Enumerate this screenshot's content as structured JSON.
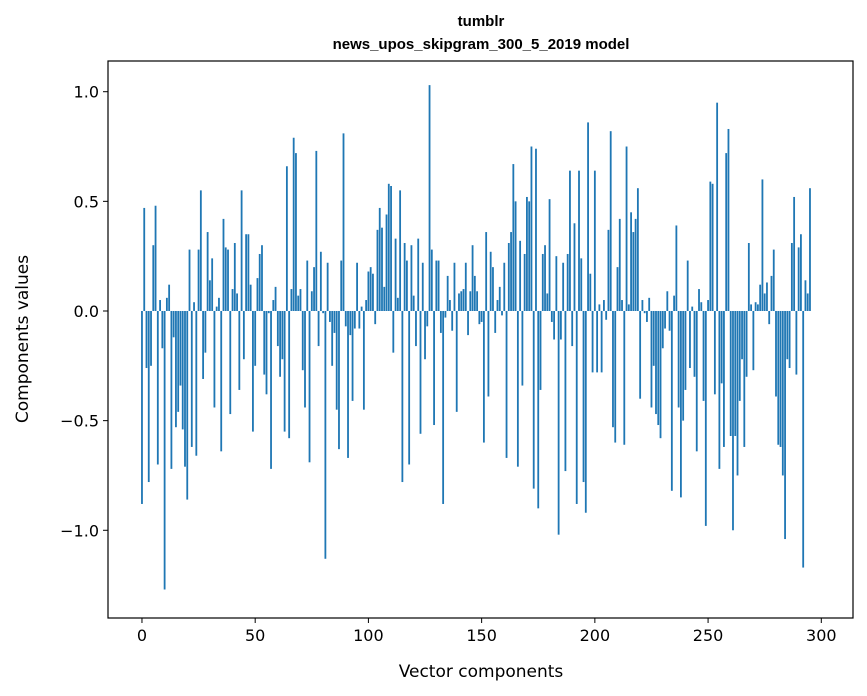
{
  "chart_data": {
    "type": "bar",
    "title": "tumblr",
    "subtitle": "news_upos_skipgram_300_5_2019 model",
    "xlabel": "Vector components",
    "ylabel": "Components values",
    "xlim": [
      -15,
      314
    ],
    "ylim": [
      -1.4,
      1.14
    ],
    "xticks": [
      0,
      50,
      100,
      150,
      200,
      250,
      300
    ],
    "xtick_labels": [
      "0",
      "50",
      "100",
      "150",
      "200",
      "250",
      "300"
    ],
    "yticks": [
      -1.0,
      -0.5,
      0.0,
      0.5,
      1.0
    ],
    "ytick_labels": [
      "−1.0",
      "−0.5",
      "0.0",
      "0.5",
      "1.0"
    ],
    "grid": false,
    "bar_color": "#1f77b4",
    "values": [
      -0.88,
      0.47,
      -0.26,
      -0.78,
      -0.25,
      0.3,
      0.48,
      -0.7,
      0.05,
      -0.17,
      -1.27,
      0.06,
      0.12,
      -0.72,
      -0.12,
      -0.53,
      -0.46,
      -0.34,
      -0.54,
      -0.71,
      -0.86,
      0.28,
      -0.62,
      0.04,
      -0.66,
      0.28,
      0.55,
      -0.31,
      -0.19,
      0.36,
      0.14,
      0.24,
      -0.44,
      0.02,
      0.06,
      -0.64,
      0.42,
      0.29,
      0.28,
      -0.47,
      0.1,
      0.31,
      0.08,
      -0.36,
      0.55,
      -0.22,
      0.35,
      0.35,
      0.12,
      -0.55,
      -0.25,
      0.15,
      0.26,
      0.3,
      -0.29,
      -0.38,
      -0.01,
      -0.72,
      0.05,
      0.11,
      -0.16,
      -0.3,
      -0.22,
      -0.55,
      0.66,
      -0.58,
      0.1,
      0.79,
      0.72,
      0.07,
      0.1,
      -0.27,
      -0.44,
      0.23,
      -0.69,
      0.09,
      0.2,
      0.73,
      -0.16,
      0.27,
      -0.01,
      -1.13,
      0.22,
      -0.05,
      -0.25,
      -0.1,
      -0.45,
      -0.63,
      0.23,
      0.81,
      -0.07,
      -0.67,
      -0.11,
      -0.41,
      -0.08,
      0.22,
      -0.08,
      0.02,
      -0.45,
      0.05,
      0.18,
      0.2,
      0.17,
      -0.06,
      0.37,
      0.47,
      0.38,
      0.11,
      0.44,
      0.58,
      0.57,
      -0.19,
      0.33,
      0.06,
      0.55,
      -0.78,
      0.31,
      0.23,
      -0.7,
      0.3,
      0.07,
      -0.16,
      0.33,
      -0.56,
      0.22,
      -0.22,
      -0.07,
      1.03,
      0.28,
      -0.52,
      0.23,
      0.23,
      -0.1,
      -0.88,
      -0.03,
      0.16,
      0.05,
      -0.09,
      0.22,
      -0.46,
      0.08,
      0.09,
      0.1,
      0.22,
      -0.11,
      0.09,
      0.3,
      0.16,
      0.09,
      -0.06,
      -0.05,
      -0.6,
      0.36,
      -0.39,
      0.27,
      0.2,
      -0.1,
      0.05,
      0.11,
      -0.02,
      0.22,
      -0.67,
      0.31,
      0.36,
      0.67,
      0.5,
      -0.71,
      0.32,
      -0.34,
      0.26,
      0.52,
      0.5,
      0.75,
      -0.81,
      0.74,
      -0.9,
      -0.36,
      0.26,
      0.3,
      0.08,
      0.51,
      -0.05,
      -0.13,
      0.25,
      -1.02,
      -0.13,
      0.22,
      -0.73,
      0.26,
      0.64,
      -0.16,
      0.4,
      -0.88,
      0.64,
      0.24,
      -0.78,
      -0.92,
      0.86,
      0.17,
      -0.28,
      0.64,
      -0.28,
      0.03,
      -0.28,
      0.05,
      -0.04,
      0.37,
      0.82,
      -0.53,
      -0.6,
      0.2,
      0.42,
      0.05,
      -0.61,
      0.75,
      0.03,
      0.45,
      0.36,
      0.42,
      0.56,
      -0.4,
      0.05,
      -0.01,
      -0.05,
      0.06,
      -0.44,
      -0.25,
      -0.47,
      -0.52,
      -0.58,
      -0.17,
      -0.08,
      0.09,
      -0.09,
      -0.82,
      0.07,
      0.39,
      -0.44,
      -0.85,
      -0.5,
      -0.36,
      0.23,
      -0.26,
      0.02,
      -0.3,
      -0.64,
      0.1,
      0.04,
      -0.41,
      -0.98,
      0.05,
      0.59,
      0.58,
      -0.38,
      0.95,
      -0.72,
      -0.33,
      -0.62,
      0.72,
      0.83,
      -0.57,
      -1.0,
      -0.57,
      -0.75,
      -0.41,
      -0.22,
      -0.62,
      -0.3,
      0.31,
      0.03,
      -0.27,
      0.04,
      0.03,
      0.12,
      0.6,
      0.08,
      0.13,
      -0.06,
      0.16,
      0.28,
      -0.39,
      -0.61,
      -0.62,
      -0.75,
      -1.04,
      -0.22,
      -0.26,
      0.31,
      0.52,
      -0.29,
      0.29,
      0.35,
      -1.17,
      0.14,
      0.08,
      0.56
    ]
  }
}
